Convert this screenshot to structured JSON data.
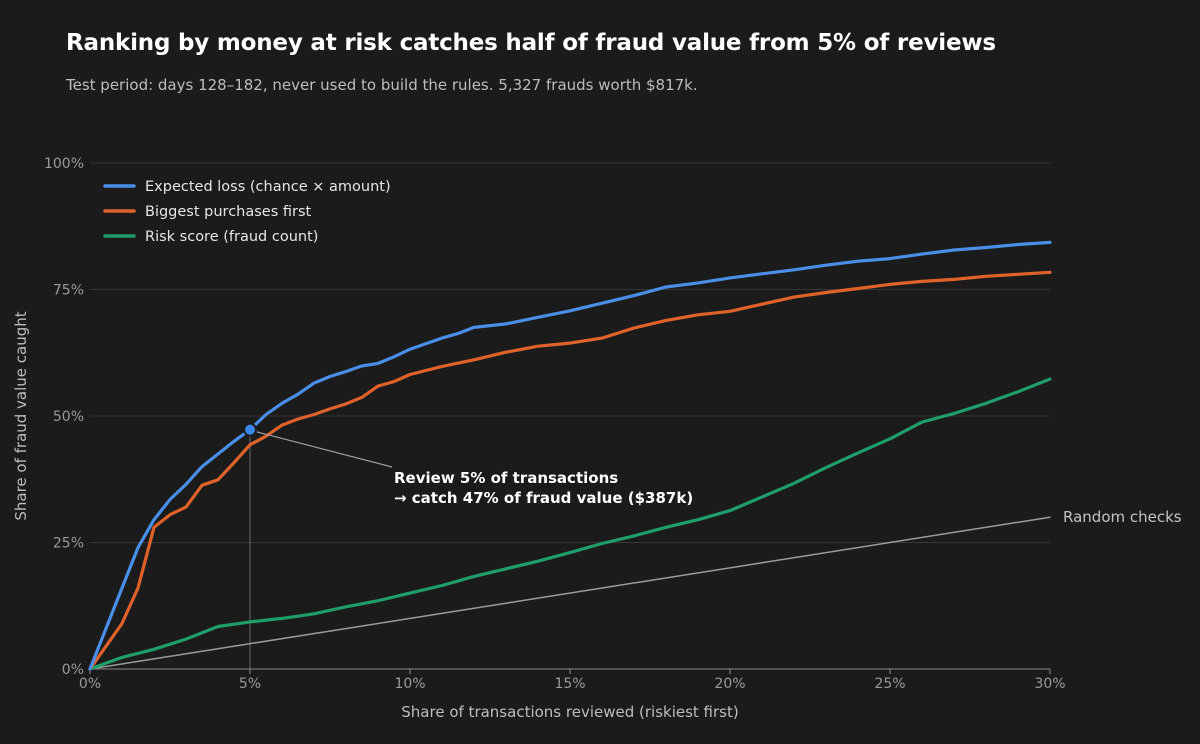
{
  "title": "Ranking by money at risk catches half of fraud value from 5% of reviews",
  "subtitle": "Test period: days 128–182, never used to build the rules. 5,327 frauds worth $817k.",
  "chart_data": {
    "type": "line",
    "title": "Ranking by money at risk catches half of fraud value from 5% of reviews",
    "subtitle": "Test period: days 128–182, never used to build the rules. 5,327 frauds worth $817k.",
    "xlabel": "Share of transactions reviewed (riskiest first)",
    "ylabel": "Share of fraud value caught",
    "xlim": [
      0,
      30
    ],
    "ylim": [
      0,
      100
    ],
    "x_unit": "%",
    "y_unit": "%",
    "x_ticks": [
      "0%",
      "5%",
      "10%",
      "15%",
      "20%",
      "25%",
      "30%"
    ],
    "y_ticks": [
      "0%",
      "25%",
      "50%",
      "75%",
      "100%"
    ],
    "grid": "horizontal",
    "legend_position": "top-left",
    "series": [
      {
        "name": "Expected loss (chance × amount)",
        "color": "#4a8fe7",
        "points": [
          [
            0,
            0
          ],
          [
            1,
            16
          ],
          [
            1.5,
            24
          ],
          [
            2,
            29.5
          ],
          [
            2.5,
            33.5
          ],
          [
            3,
            36.5
          ],
          [
            3.5,
            40
          ],
          [
            4,
            42.5
          ],
          [
            4.5,
            45
          ],
          [
            5,
            47.3
          ],
          [
            5.5,
            50.3
          ],
          [
            6,
            52.5
          ],
          [
            6.5,
            54.3
          ],
          [
            7,
            56.5
          ],
          [
            7.5,
            57.8
          ],
          [
            8,
            58.8
          ],
          [
            8.5,
            59.9
          ],
          [
            9,
            60.4
          ],
          [
            9.5,
            61.7
          ],
          [
            10,
            63.2
          ],
          [
            10.5,
            64.3
          ],
          [
            11,
            65.4
          ],
          [
            11.5,
            66.3
          ],
          [
            12,
            67.5
          ],
          [
            13,
            68.2
          ],
          [
            14,
            69.5
          ],
          [
            15,
            70.8
          ],
          [
            16,
            72.3
          ],
          [
            17,
            73.8
          ],
          [
            18,
            75.5
          ],
          [
            19,
            76.3
          ],
          [
            20,
            77.3
          ],
          [
            21,
            78.1
          ],
          [
            22,
            78.9
          ],
          [
            23,
            79.8
          ],
          [
            24,
            80.6
          ],
          [
            25,
            81.1
          ],
          [
            26,
            82
          ],
          [
            27,
            82.8
          ],
          [
            28,
            83.3
          ],
          [
            29,
            83.9
          ],
          [
            30,
            84.3
          ]
        ]
      },
      {
        "name": "Biggest purchases first",
        "color": "#e0622b",
        "points": [
          [
            0,
            0
          ],
          [
            1,
            9
          ],
          [
            1.5,
            16
          ],
          [
            2,
            28
          ],
          [
            2.5,
            30.5
          ],
          [
            3,
            32
          ],
          [
            3.5,
            36.3
          ],
          [
            4,
            37.4
          ],
          [
            4.5,
            40.8
          ],
          [
            5,
            44.3
          ],
          [
            5.5,
            46
          ],
          [
            6,
            48.2
          ],
          [
            6.5,
            49.4
          ],
          [
            7,
            50.3
          ],
          [
            7.5,
            51.4
          ],
          [
            8,
            52.4
          ],
          [
            8.5,
            53.7
          ],
          [
            9,
            55.9
          ],
          [
            9.5,
            56.8
          ],
          [
            10,
            58.2
          ],
          [
            11,
            59.8
          ],
          [
            12,
            61.1
          ],
          [
            13,
            62.6
          ],
          [
            14,
            63.8
          ],
          [
            15,
            64.4
          ],
          [
            16,
            65.4
          ],
          [
            17,
            67.4
          ],
          [
            18,
            68.9
          ],
          [
            19,
            70
          ],
          [
            20,
            70.7
          ],
          [
            21,
            72.1
          ],
          [
            22,
            73.5
          ],
          [
            23,
            74.4
          ],
          [
            24,
            75.2
          ],
          [
            25,
            76
          ],
          [
            26,
            76.6
          ],
          [
            27,
            77
          ],
          [
            28,
            77.6
          ],
          [
            29,
            78
          ],
          [
            30,
            78.4
          ]
        ]
      },
      {
        "name": "Risk score (fraud count)",
        "color": "#1f9e6a",
        "points": [
          [
            0,
            0
          ],
          [
            1,
            2.3
          ],
          [
            2,
            3.9
          ],
          [
            3,
            5.9
          ],
          [
            4,
            8.4
          ],
          [
            5,
            9.3
          ],
          [
            6,
            10
          ],
          [
            7,
            10.9
          ],
          [
            8,
            12.3
          ],
          [
            9,
            13.5
          ],
          [
            10,
            15
          ],
          [
            11,
            16.5
          ],
          [
            12,
            18.3
          ],
          [
            13,
            19.8
          ],
          [
            14,
            21.3
          ],
          [
            15,
            23
          ],
          [
            16,
            24.8
          ],
          [
            17,
            26.3
          ],
          [
            18,
            28
          ],
          [
            19,
            29.5
          ],
          [
            20,
            31.3
          ],
          [
            21,
            34
          ],
          [
            22,
            36.7
          ],
          [
            23,
            39.8
          ],
          [
            24,
            42.7
          ],
          [
            25,
            45.5
          ],
          [
            26,
            48.8
          ],
          [
            27,
            50.5
          ],
          [
            28,
            52.5
          ],
          [
            29,
            54.8
          ],
          [
            30,
            57.3
          ]
        ]
      },
      {
        "name": "Random checks",
        "color": "#9b9b9b",
        "points": [
          [
            0,
            0
          ],
          [
            30,
            30
          ]
        ]
      }
    ],
    "highlight": {
      "x": 5,
      "y": 47.3,
      "label_line1": "Review 5% of transactions",
      "label_line2": "→ catch 47% of fraud value ($387k)"
    },
    "reference_label": "Random checks"
  }
}
